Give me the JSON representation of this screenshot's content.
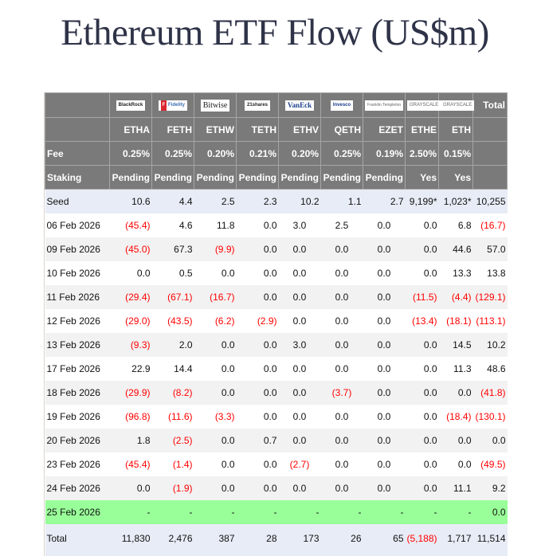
{
  "page": {
    "title": "Ethereum ETF Flow (US$m)"
  },
  "table": {
    "issuers": [
      {
        "name": "BlackRock",
        "logo": "blackrock-logo"
      },
      {
        "name": "Fidelity",
        "logo": "fidelity-logo"
      },
      {
        "name": "Bitwise",
        "logo": "bitwise-logo"
      },
      {
        "name": "21shares",
        "logo": "21shares-logo"
      },
      {
        "name": "VanEck",
        "logo": "vaneck-logo"
      },
      {
        "name": "Invesco",
        "logo": "invesco-logo"
      },
      {
        "name": "Franklin Templeton",
        "logo": "franklin-templeton-logo"
      },
      {
        "name": "GRAYSCALE",
        "logo": "grayscale-logo"
      },
      {
        "name": "GRAYSCALE",
        "logo": "grayscale-logo"
      }
    ],
    "total_header": "Total",
    "tickers": [
      "ETHA",
      "FETH",
      "ETHW",
      "TETH",
      "ETHV",
      "QETH",
      "EZET",
      "ETHE",
      "ETH"
    ],
    "fee_label": "Fee",
    "fees": [
      "0.25%",
      "0.25%",
      "0.20%",
      "0.21%",
      "0.20%",
      "0.25%",
      "0.19%",
      "2.50%",
      "0.15%"
    ],
    "staking_label": "Staking",
    "staking": [
      "Pending",
      "Pending",
      "Pending",
      "Pending",
      "Pending",
      "Pending",
      "Pending",
      "Yes",
      "Yes"
    ],
    "rows": [
      {
        "date": "Seed",
        "values": [
          "10.6",
          "4.4",
          "2.5",
          "2.3",
          "10.2",
          "1.1",
          "2.7",
          "9,199*",
          "1,023*",
          "10,255"
        ],
        "style": "seed"
      },
      {
        "date": "06 Feb 2026",
        "values": [
          "(45.4)",
          "4.6",
          "11.8",
          "0.0",
          "3.0",
          "2.5",
          "0.0",
          "0.0",
          "6.8",
          "(16.7)"
        ],
        "style": "odd"
      },
      {
        "date": "09 Feb 2026",
        "values": [
          "(45.0)",
          "67.3",
          "(9.9)",
          "0.0",
          "0.0",
          "0.0",
          "0.0",
          "0.0",
          "44.6",
          "57.0"
        ],
        "style": "even"
      },
      {
        "date": "10 Feb 2026",
        "values": [
          "0.0",
          "0.5",
          "0.0",
          "0.0",
          "0.0",
          "0.0",
          "0.0",
          "0.0",
          "13.3",
          "13.8"
        ],
        "style": "odd"
      },
      {
        "date": "11 Feb 2026",
        "values": [
          "(29.4)",
          "(67.1)",
          "(16.7)",
          "0.0",
          "0.0",
          "0.0",
          "0.0",
          "(11.5)",
          "(4.4)",
          "(129.1)"
        ],
        "style": "even"
      },
      {
        "date": "12 Feb 2026",
        "values": [
          "(29.0)",
          "(43.5)",
          "(6.2)",
          "(2.9)",
          "0.0",
          "0.0",
          "0.0",
          "(13.4)",
          "(18.1)",
          "(113.1)"
        ],
        "style": "odd"
      },
      {
        "date": "13 Feb 2026",
        "values": [
          "(9.3)",
          "2.0",
          "0.0",
          "0.0",
          "3.0",
          "0.0",
          "0.0",
          "0.0",
          "14.5",
          "10.2"
        ],
        "style": "even"
      },
      {
        "date": "17 Feb 2026",
        "values": [
          "22.9",
          "14.4",
          "0.0",
          "0.0",
          "0.0",
          "0.0",
          "0.0",
          "0.0",
          "11.3",
          "48.6"
        ],
        "style": "odd"
      },
      {
        "date": "18 Feb 2026",
        "values": [
          "(29.9)",
          "(8.2)",
          "0.0",
          "0.0",
          "0.0",
          "(3.7)",
          "0.0",
          "0.0",
          "0.0",
          "(41.8)"
        ],
        "style": "even"
      },
      {
        "date": "19 Feb 2026",
        "values": [
          "(96.8)",
          "(11.6)",
          "(3.3)",
          "0.0",
          "0.0",
          "0.0",
          "0.0",
          "0.0",
          "(18.4)",
          "(130.1)"
        ],
        "style": "odd"
      },
      {
        "date": "20 Feb 2026",
        "values": [
          "1.8",
          "(2.5)",
          "0.0",
          "0.7",
          "0.0",
          "0.0",
          "0.0",
          "0.0",
          "0.0",
          "0.0"
        ],
        "style": "even"
      },
      {
        "date": "23 Feb 2026",
        "values": [
          "(45.4)",
          "(1.4)",
          "0.0",
          "0.0",
          "(2.7)",
          "0.0",
          "0.0",
          "0.0",
          "0.0",
          "(49.5)"
        ],
        "style": "odd"
      },
      {
        "date": "24 Feb 2026",
        "values": [
          "0.0",
          "(1.9)",
          "0.0",
          "0.0",
          "0.0",
          "0.0",
          "0.0",
          "0.0",
          "11.1",
          "9.2"
        ],
        "style": "even"
      },
      {
        "date": "25 Feb 2026",
        "values": [
          "-",
          "-",
          "-",
          "-",
          "-",
          "-",
          "-",
          "-",
          "-",
          "0.0"
        ],
        "style": "green"
      },
      {
        "date": "Total",
        "values": [
          "11,830",
          "2,476",
          "387",
          "28",
          "173",
          "26",
          "65",
          "(5,188)",
          "1,717",
          "11,514"
        ],
        "style": "total"
      }
    ],
    "colors": {
      "header_bg": "#7a7a7a",
      "negative": "#ff0000",
      "highlight_row": "#99ff99",
      "seed_total_bg": "#e8ecf6",
      "alt_row": "#f2f2f2"
    }
  }
}
